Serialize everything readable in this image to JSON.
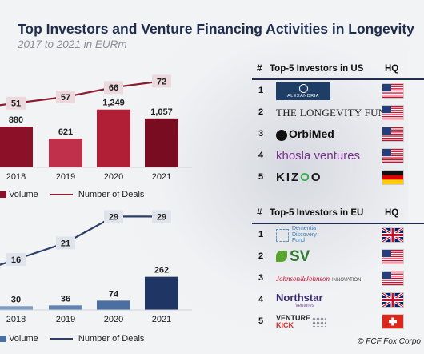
{
  "title": "Top Investors and Venture Financing Activities in Longevity",
  "subtitle": "2017 to 2021 in EURm",
  "chart_data": [
    {
      "type": "bar",
      "categories": [
        "2018",
        "2019",
        "2020",
        "2021"
      ],
      "series": [
        {
          "name": "Volume",
          "values": [
            880,
            621,
            1249,
            1057
          ],
          "labels": [
            "880",
            "621",
            "1,249",
            "1,057"
          ]
        },
        {
          "name": "Number of Deals",
          "type": "line",
          "values": [
            51,
            57,
            66,
            72
          ],
          "labels": [
            "51",
            "57",
            "66",
            "72"
          ]
        }
      ],
      "ylim": [
        0,
        1400
      ],
      "deals_ylim": [
        0,
        100
      ],
      "colors": [
        "#8b1028",
        "#c0304a",
        "#b01f36",
        "#7a0c22"
      ],
      "line_color": "#8b1a2e",
      "legend": [
        "Volume",
        "Number of Deals"
      ],
      "legend_position": "bottom"
    },
    {
      "type": "bar",
      "categories": [
        "2018",
        "2019",
        "2020",
        "2021"
      ],
      "series": [
        {
          "name": "Volume",
          "values": [
            30,
            36,
            74,
            262
          ],
          "labels": [
            "30",
            "36",
            "74",
            "262"
          ]
        },
        {
          "name": "Number of Deals",
          "type": "line",
          "values": [
            16,
            21,
            29,
            29
          ],
          "labels": [
            "16",
            "21",
            "29",
            "29"
          ]
        }
      ],
      "ylim": [
        0,
        450
      ],
      "deals_ylim": [
        0,
        40
      ],
      "colors": [
        "#7d9cc2",
        "#5f84b4",
        "#4a6fa0",
        "#1f3563"
      ],
      "line_color": "#2c3f66",
      "legend": [
        "Volume",
        "Number of Deals"
      ],
      "legend_position": "bottom"
    }
  ],
  "us_table": {
    "header": {
      "rank": "#",
      "title": "Top-5 Investors in US",
      "hq": "HQ"
    },
    "rows": [
      {
        "rank": "1",
        "logo": "ALEXANDRIA",
        "flag": "us-flag"
      },
      {
        "rank": "2",
        "logo": "The Longevity Fund",
        "flag": "us-flag"
      },
      {
        "rank": "3",
        "logo": "OrbiMed",
        "flag": "us-flag"
      },
      {
        "rank": "4",
        "logo": "khosla ventures",
        "flag": "us-flag"
      },
      {
        "rank": "5",
        "logo": "KIZOO",
        "flag": "germany-flag"
      }
    ]
  },
  "eu_table": {
    "header": {
      "rank": "#",
      "title": "Top-5 Investors in EU",
      "hq": "HQ"
    },
    "rows": [
      {
        "rank": "1",
        "logo": "Dementia Discovery Fund",
        "flag": "uk-flag"
      },
      {
        "rank": "2",
        "logo": "SV",
        "flag": "us-flag"
      },
      {
        "rank": "3",
        "logo": "Johnson & Johnson INNOVATION",
        "flag": "us-flag"
      },
      {
        "rank": "4",
        "logo": "Northstar Ventures",
        "flag": "uk-flag"
      },
      {
        "rank": "5",
        "logo": "VENTURE KICK",
        "flag": "switzerland-flag"
      }
    ]
  },
  "footer": "© FCF Fox Corpo"
}
